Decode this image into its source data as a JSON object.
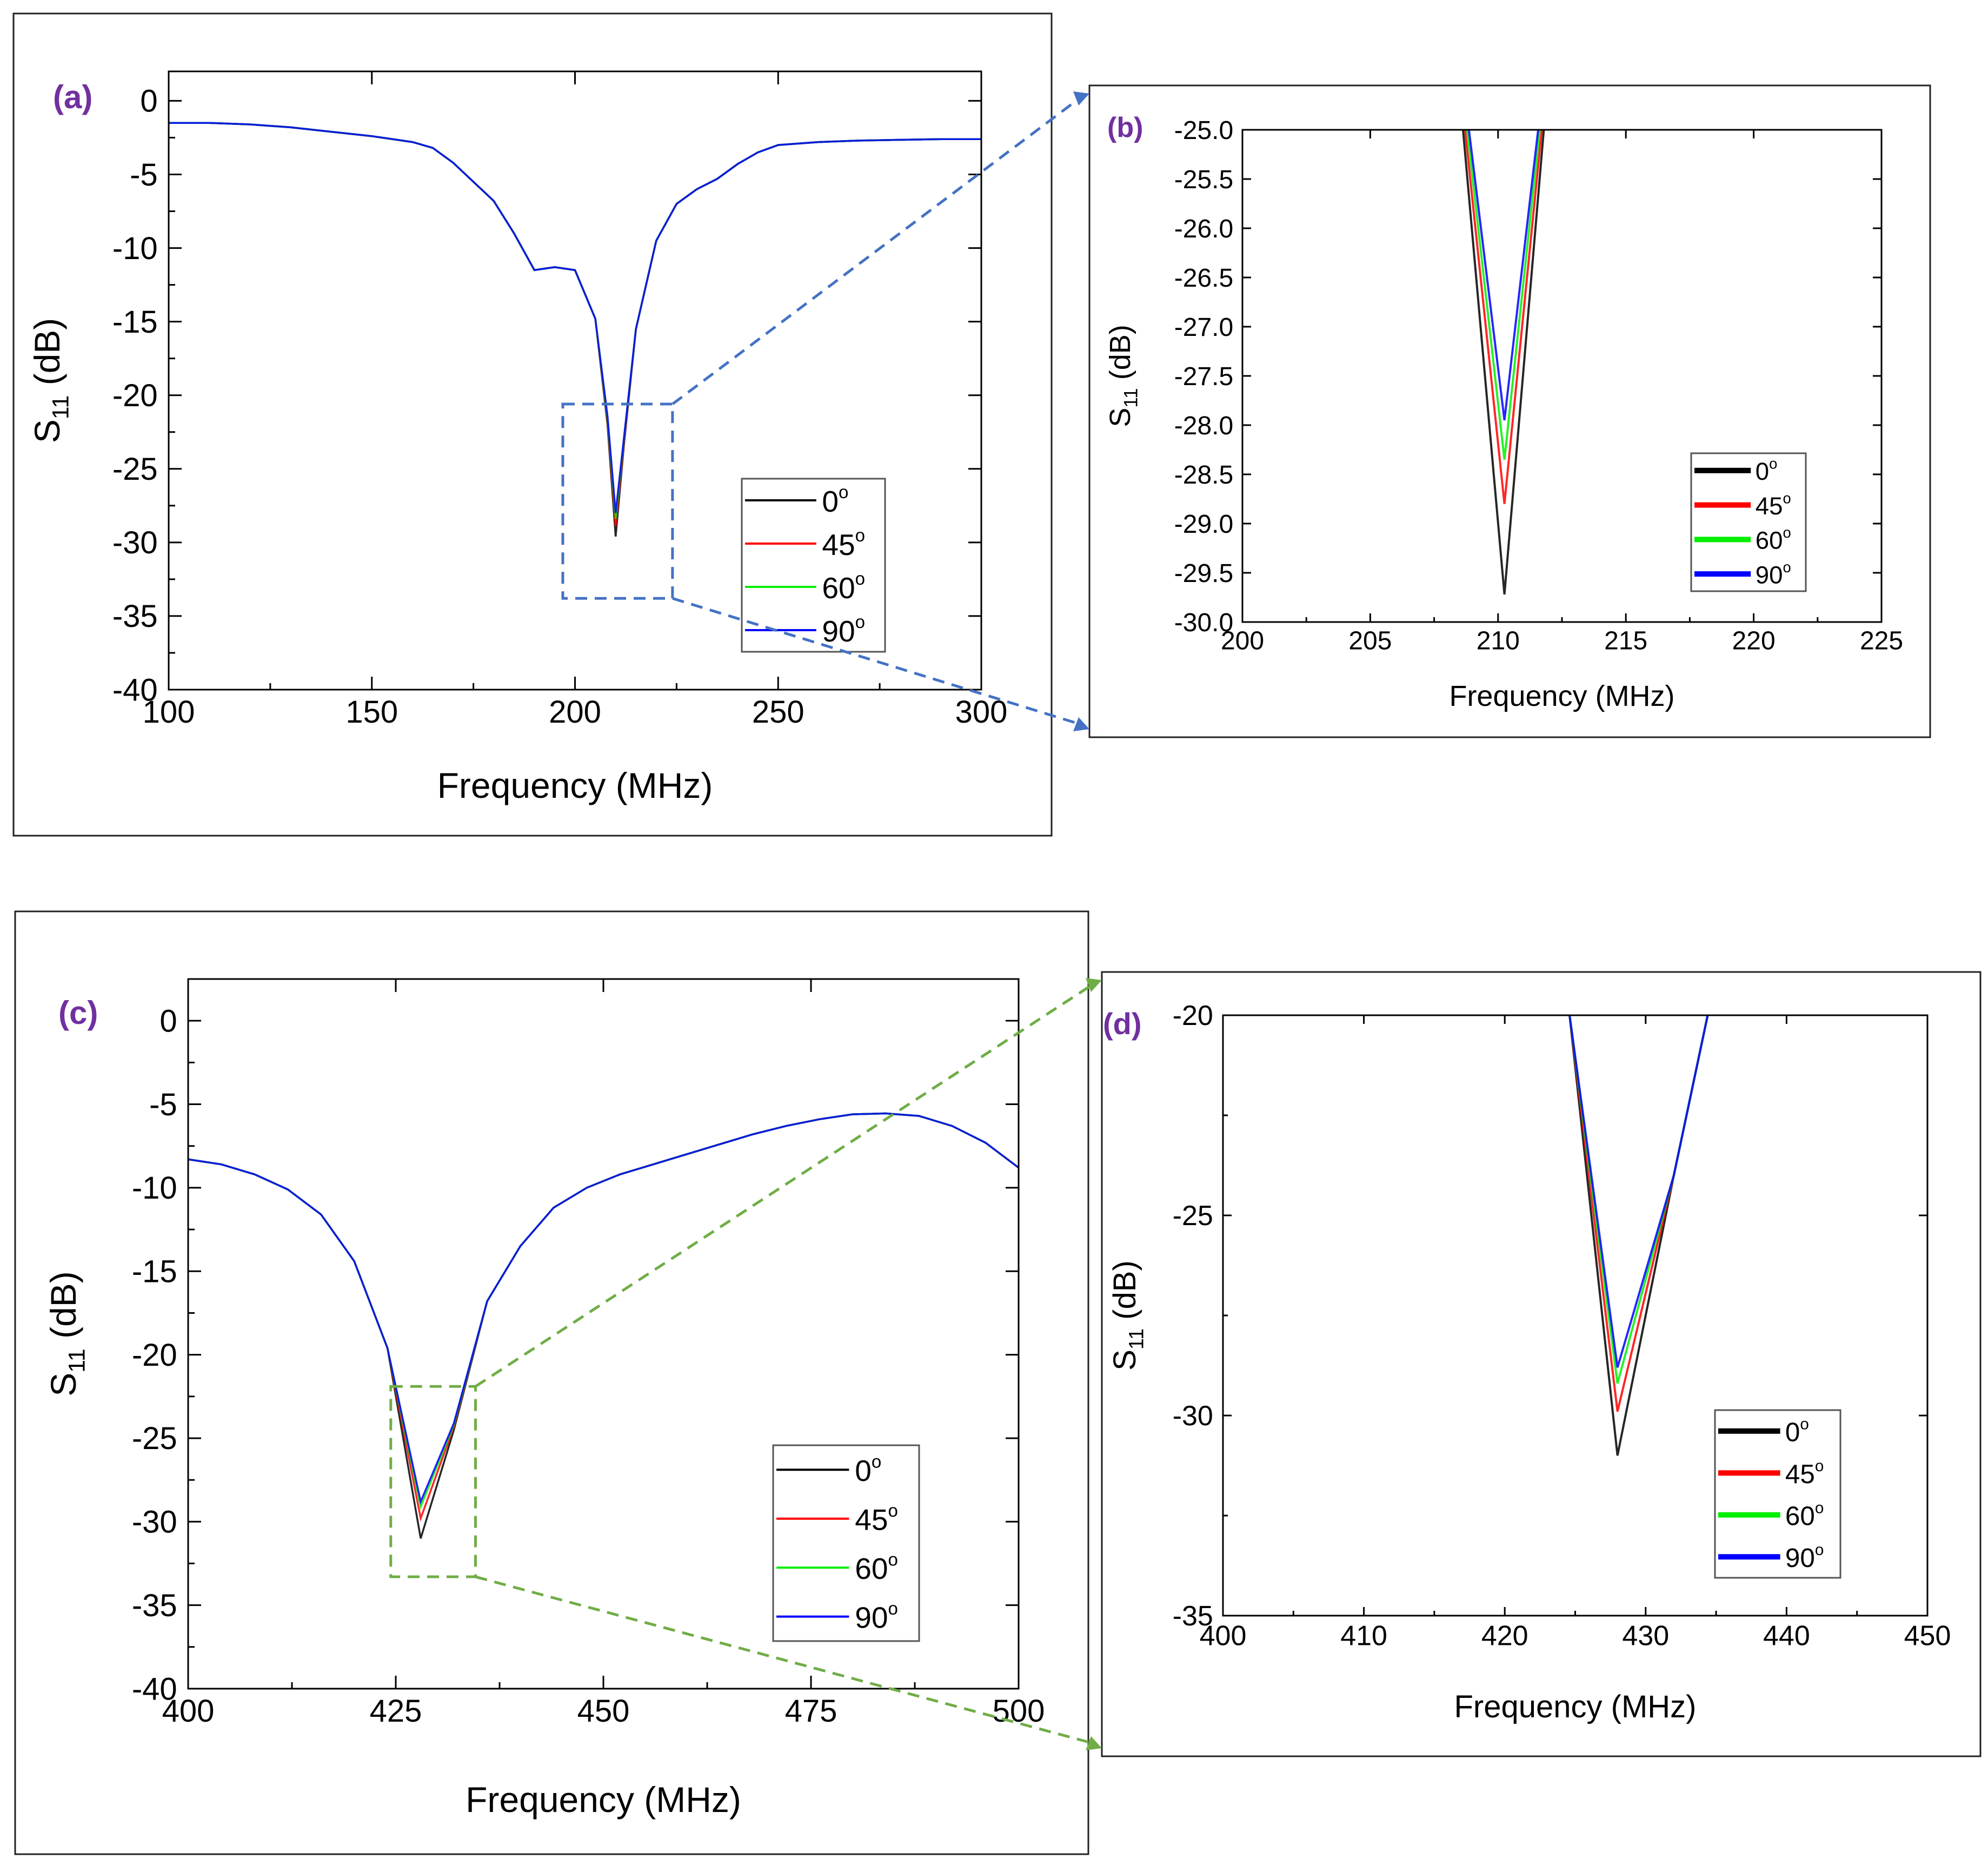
{
  "chart_data": [
    {
      "id": "a",
      "panel_label": "(a)",
      "type": "line",
      "xlabel": "Frequency (MHz)",
      "ylabel_main": "S",
      "ylabel_sub": "11",
      "ylabel_rest": " (dB)",
      "xlim": [
        100,
        300
      ],
      "ylim": [
        -40,
        2
      ],
      "xticks": [
        100,
        150,
        200,
        250,
        300
      ],
      "xtick_labels": [
        "100",
        "150",
        "200",
        "250",
        "300"
      ],
      "yticks": [
        0,
        -5,
        -10,
        -15,
        -20,
        -25,
        -30,
        -35,
        -40
      ],
      "ytick_labels": [
        "0",
        "-5",
        "-10",
        "-15",
        "-20",
        "-25",
        "-30",
        "-35",
        "-40"
      ],
      "legend": [
        "0",
        "45",
        "60",
        "90"
      ],
      "legend_sup": "o",
      "legend_position": "lower-right",
      "zoom_box": {
        "x": [
          197,
          224
        ],
        "y": [
          -33.8,
          -20.6
        ]
      },
      "series": [
        {
          "name": "0°",
          "color": "#000000",
          "x": [
            100,
            110,
            120,
            130,
            140,
            150,
            160,
            165,
            170,
            175,
            180,
            185,
            190,
            195,
            200,
            205,
            208,
            210,
            212,
            215,
            220,
            225,
            230,
            235,
            240,
            245,
            250,
            260,
            270,
            280,
            290,
            300
          ],
          "y": [
            -1.5,
            -1.5,
            -1.6,
            -1.8,
            -2.1,
            -2.4,
            -2.8,
            -3.2,
            -4.2,
            -5.5,
            -6.8,
            -9.0,
            -11.5,
            -11.3,
            -11.5,
            -14.8,
            -22.0,
            -29.6,
            -23.5,
            -15.5,
            -9.5,
            -7.0,
            -6.0,
            -5.3,
            -4.3,
            -3.5,
            -3.0,
            -2.8,
            -2.7,
            -2.65,
            -2.6,
            -2.6
          ]
        },
        {
          "name": "45°",
          "color": "#ff0000",
          "x": [
            100,
            110,
            120,
            130,
            140,
            150,
            160,
            165,
            170,
            175,
            180,
            185,
            190,
            195,
            200,
            205,
            208,
            210,
            212,
            215,
            220,
            225,
            230,
            235,
            240,
            245,
            250,
            260,
            270,
            280,
            290,
            300
          ],
          "y": [
            -1.5,
            -1.5,
            -1.6,
            -1.8,
            -2.1,
            -2.4,
            -2.8,
            -3.2,
            -4.2,
            -5.5,
            -6.8,
            -9.0,
            -11.5,
            -11.3,
            -11.5,
            -14.8,
            -21.8,
            -28.9,
            -23.3,
            -15.5,
            -9.5,
            -7.0,
            -6.0,
            -5.3,
            -4.3,
            -3.5,
            -3.0,
            -2.8,
            -2.7,
            -2.65,
            -2.6,
            -2.6
          ]
        },
        {
          "name": "60°",
          "color": "#00ee00",
          "x": [
            100,
            110,
            120,
            130,
            140,
            150,
            160,
            165,
            170,
            175,
            180,
            185,
            190,
            195,
            200,
            205,
            208,
            210,
            212,
            215,
            220,
            225,
            230,
            235,
            240,
            245,
            250,
            260,
            270,
            280,
            290,
            300
          ],
          "y": [
            -1.5,
            -1.5,
            -1.6,
            -1.8,
            -2.1,
            -2.4,
            -2.8,
            -3.2,
            -4.2,
            -5.5,
            -6.8,
            -9.0,
            -11.5,
            -11.3,
            -11.5,
            -14.8,
            -21.6,
            -28.4,
            -23.1,
            -15.5,
            -9.5,
            -7.0,
            -6.0,
            -5.3,
            -4.3,
            -3.5,
            -3.0,
            -2.8,
            -2.7,
            -2.65,
            -2.6,
            -2.6
          ]
        },
        {
          "name": "90°",
          "color": "#0000ff",
          "x": [
            100,
            110,
            120,
            130,
            140,
            150,
            160,
            165,
            170,
            175,
            180,
            185,
            190,
            195,
            200,
            205,
            208,
            210,
            212,
            215,
            220,
            225,
            230,
            235,
            240,
            245,
            250,
            260,
            270,
            280,
            290,
            300
          ],
          "y": [
            -1.5,
            -1.5,
            -1.6,
            -1.8,
            -2.1,
            -2.4,
            -2.8,
            -3.2,
            -4.2,
            -5.5,
            -6.8,
            -9.0,
            -11.5,
            -11.3,
            -11.5,
            -14.8,
            -21.4,
            -28.0,
            -23.0,
            -15.5,
            -9.5,
            -7.0,
            -6.0,
            -5.3,
            -4.3,
            -3.5,
            -3.0,
            -2.8,
            -2.7,
            -2.65,
            -2.6,
            -2.6
          ]
        }
      ]
    },
    {
      "id": "b",
      "panel_label": "(b)",
      "type": "line",
      "xlabel": "Frequency (MHz)",
      "ylabel_main": "S",
      "ylabel_sub": "11",
      "ylabel_rest": " (dB)",
      "xlim": [
        200,
        225
      ],
      "ylim": [
        -30.0,
        -25.0
      ],
      "xticks": [
        200,
        205,
        210,
        215,
        220,
        225
      ],
      "xtick_labels": [
        "200",
        "205",
        "210",
        "215",
        "220",
        "225"
      ],
      "yticks": [
        -25.0,
        -25.5,
        -26.0,
        -26.5,
        -27.0,
        -27.5,
        -28.0,
        -28.5,
        -29.0,
        -29.5,
        -30.0
      ],
      "ytick_labels": [
        "-25.0",
        "-25.5",
        "-26.0",
        "-26.5",
        "-27.0",
        "-27.5",
        "-28.0",
        "-28.5",
        "-29.0",
        "-29.5",
        "-30.0"
      ],
      "legend": [
        "0",
        "45",
        "60",
        "90"
      ],
      "legend_sup": "o",
      "legend_position": "lower-right",
      "series": [
        {
          "name": "0°",
          "color": "#000000",
          "x": [
            208.63,
            210.25,
            211.79
          ],
          "y": [
            -25.0,
            -29.72,
            -25.0
          ]
        },
        {
          "name": "45°",
          "color": "#ff0000",
          "x": [
            208.71,
            210.25,
            211.71
          ],
          "y": [
            -25.0,
            -28.8,
            -25.0
          ]
        },
        {
          "name": "60°",
          "color": "#00ee00",
          "x": [
            208.79,
            210.25,
            211.63
          ],
          "y": [
            -25.0,
            -28.35,
            -25.0
          ]
        },
        {
          "name": "90°",
          "color": "#0000ff",
          "x": [
            208.86,
            210.25,
            211.57
          ],
          "y": [
            -25.0,
            -27.95,
            -25.0
          ]
        }
      ]
    },
    {
      "id": "c",
      "panel_label": "(c)",
      "type": "line",
      "xlabel": "Frequency (MHz)",
      "ylabel_main": "S",
      "ylabel_sub": "11",
      "ylabel_rest": " (dB)",
      "xlim": [
        400,
        500
      ],
      "ylim": [
        -40,
        2.5
      ],
      "xticks": [
        400,
        425,
        450,
        475,
        500
      ],
      "xtick_labels": [
        "400",
        "425",
        "450",
        "475",
        "500"
      ],
      "yticks": [
        0,
        -5,
        -10,
        -15,
        -20,
        -25,
        -30,
        -35,
        -40
      ],
      "ytick_labels": [
        "0",
        "-5",
        "-10",
        "-15",
        "-20",
        "-25",
        "-30",
        "-35",
        "-40"
      ],
      "legend": [
        "0",
        "45",
        "60",
        "90"
      ],
      "legend_sup": "o",
      "legend_position": "lower-right",
      "zoom_box": {
        "x": [
          424.4,
          434.6
        ],
        "y": [
          -33.3,
          -21.9
        ]
      },
      "series": [
        {
          "name": "0°",
          "color": "#000000",
          "x": [
            400,
            404,
            408,
            412,
            416,
            420,
            424,
            428,
            432,
            436,
            440,
            444,
            448,
            452,
            456,
            460,
            464,
            468,
            472,
            476,
            480,
            484,
            488,
            492,
            496,
            500
          ],
          "y": [
            -8.3,
            -8.6,
            -9.2,
            -10.1,
            -11.6,
            -14.4,
            -19.6,
            -31.0,
            -24.5,
            -16.8,
            -13.5,
            -11.2,
            -10.0,
            -9.2,
            -8.6,
            -8.0,
            -7.4,
            -6.8,
            -6.3,
            -5.9,
            -5.6,
            -5.55,
            -5.7,
            -6.3,
            -7.3,
            -8.8
          ]
        },
        {
          "name": "45°",
          "color": "#ff0000",
          "x": [
            400,
            404,
            408,
            412,
            416,
            420,
            424,
            428,
            432,
            436,
            440,
            444,
            448,
            452,
            456,
            460,
            464,
            468,
            472,
            476,
            480,
            484,
            488,
            492,
            496,
            500
          ],
          "y": [
            -8.3,
            -8.6,
            -9.2,
            -10.1,
            -11.6,
            -14.4,
            -19.6,
            -29.8,
            -24.3,
            -16.8,
            -13.5,
            -11.2,
            -10.0,
            -9.2,
            -8.6,
            -8.0,
            -7.4,
            -6.8,
            -6.3,
            -5.9,
            -5.6,
            -5.55,
            -5.7,
            -6.3,
            -7.3,
            -8.8
          ]
        },
        {
          "name": "60°",
          "color": "#00ee00",
          "x": [
            400,
            404,
            408,
            412,
            416,
            420,
            424,
            428,
            432,
            436,
            440,
            444,
            448,
            452,
            456,
            460,
            464,
            468,
            472,
            476,
            480,
            484,
            488,
            492,
            496,
            500
          ],
          "y": [
            -8.3,
            -8.6,
            -9.2,
            -10.1,
            -11.6,
            -14.4,
            -19.6,
            -29.1,
            -24.2,
            -16.8,
            -13.5,
            -11.2,
            -10.0,
            -9.2,
            -8.6,
            -8.0,
            -7.4,
            -6.8,
            -6.3,
            -5.9,
            -5.6,
            -5.55,
            -5.7,
            -6.3,
            -7.3,
            -8.8
          ]
        },
        {
          "name": "90°",
          "color": "#0000ff",
          "x": [
            400,
            404,
            408,
            412,
            416,
            420,
            424,
            428,
            432,
            436,
            440,
            444,
            448,
            452,
            456,
            460,
            464,
            468,
            472,
            476,
            480,
            484,
            488,
            492,
            496,
            500
          ],
          "y": [
            -8.3,
            -8.6,
            -9.2,
            -10.1,
            -11.6,
            -14.4,
            -19.6,
            -28.8,
            -24.1,
            -16.8,
            -13.5,
            -11.2,
            -10.0,
            -9.2,
            -8.6,
            -8.0,
            -7.4,
            -6.8,
            -6.3,
            -5.9,
            -5.6,
            -5.55,
            -5.7,
            -6.3,
            -7.3,
            -8.8
          ]
        }
      ]
    },
    {
      "id": "d",
      "panel_label": "(d)",
      "type": "line",
      "xlabel": "Frequency (MHz)",
      "ylabel_main": "S",
      "ylabel_sub": "11",
      "ylabel_rest": " (dB)",
      "xlim": [
        400,
        450
      ],
      "ylim": [
        -35,
        -20
      ],
      "xticks": [
        400,
        410,
        420,
        430,
        440,
        450
      ],
      "xtick_labels": [
        "400",
        "410",
        "420",
        "430",
        "440",
        "450"
      ],
      "yticks": [
        -20,
        -25,
        -30,
        -35
      ],
      "ytick_labels": [
        "-20",
        "-25",
        "-30",
        "-35"
      ],
      "legend": [
        "0",
        "45",
        "60",
        "90"
      ],
      "legend_sup": "o",
      "legend_position": "lower-right",
      "series": [
        {
          "name": "0°",
          "color": "#000000",
          "x": [
            424.6,
            428.0,
            432.0,
            434.4
          ],
          "y": [
            -20.0,
            -31.0,
            -24.0,
            -20.0
          ]
        },
        {
          "name": "45°",
          "color": "#ff0000",
          "x": [
            424.6,
            428.0,
            432.0,
            434.4
          ],
          "y": [
            -20.0,
            -29.9,
            -24.0,
            -20.0
          ]
        },
        {
          "name": "60°",
          "color": "#00ee00",
          "x": [
            424.6,
            428.0,
            432.0,
            434.4
          ],
          "y": [
            -20.0,
            -29.2,
            -24.0,
            -20.0
          ]
        },
        {
          "name": "90°",
          "color": "#0000ff",
          "x": [
            424.6,
            428.0,
            432.0,
            434.4
          ],
          "y": [
            -20.0,
            -28.8,
            -24.0,
            -20.0
          ]
        }
      ]
    }
  ],
  "colors": {
    "zoom_blue": "#4472c4",
    "zoom_green": "#70ad47",
    "label_purple": "#7030a0"
  }
}
